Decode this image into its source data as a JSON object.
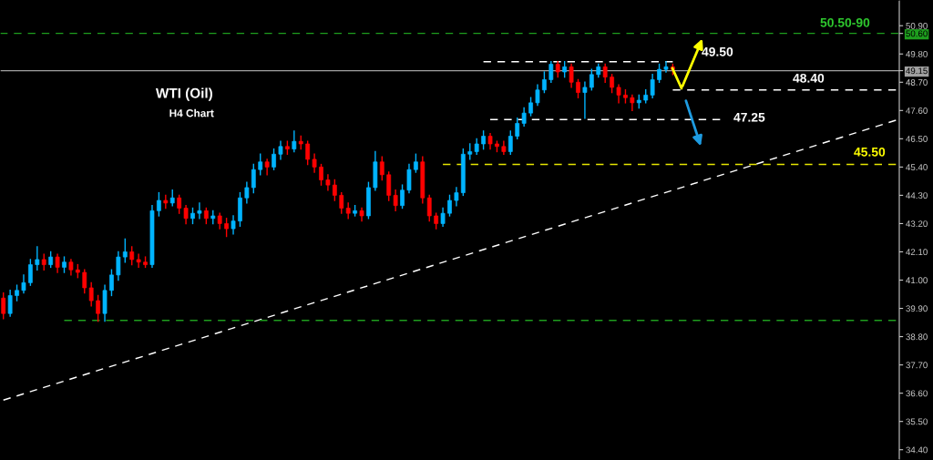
{
  "chart_data": {
    "type": "candlestick",
    "title": "WTI (Oil)",
    "subtitle": "H4 Chart",
    "categories": [
      null,
      null,
      null,
      null,
      null,
      null,
      null,
      null,
      null,
      null,
      null,
      null,
      null,
      null,
      null,
      null,
      null,
      null,
      null,
      null,
      null,
      null,
      null,
      null,
      null,
      null,
      null,
      null,
      null,
      null,
      null,
      null,
      null,
      null,
      null,
      null,
      null,
      null,
      null,
      null,
      null,
      null,
      null,
      null,
      null,
      null,
      null,
      null,
      null,
      null,
      null,
      null,
      null,
      null,
      null,
      null,
      null,
      null,
      null,
      null,
      null,
      null,
      null,
      null,
      null,
      null,
      null,
      null,
      null,
      null,
      null,
      null,
      null,
      null,
      null,
      null,
      null,
      null,
      null,
      null,
      null,
      null,
      null,
      null,
      null,
      null,
      null,
      null,
      null,
      null,
      null,
      null,
      null,
      null,
      null,
      null,
      null,
      null,
      null,
      null,
      null,
      null,
      null,
      null,
      null,
      null,
      null,
      null,
      null,
      null,
      null,
      null,
      null,
      null,
      null,
      null,
      null,
      null,
      null,
      null,
      null,
      null,
      null,
      null,
      null,
      null,
      null,
      null,
      null,
      null,
      null,
      null,
      null
    ],
    "ohlc": [
      [
        40.3,
        40.5,
        39.5,
        39.7
      ],
      [
        39.7,
        40.6,
        39.6,
        40.4
      ],
      [
        40.4,
        40.8,
        40.2,
        40.6
      ],
      [
        40.6,
        41.2,
        40.5,
        40.9
      ],
      [
        40.9,
        41.8,
        40.8,
        41.6
      ],
      [
        41.6,
        42.3,
        41.4,
        41.8
      ],
      [
        41.8,
        42.0,
        41.4,
        41.6
      ],
      [
        41.6,
        42.1,
        41.5,
        41.9
      ],
      [
        41.9,
        42.0,
        41.3,
        41.5
      ],
      [
        41.5,
        41.9,
        41.3,
        41.7
      ],
      [
        41.7,
        41.8,
        41.2,
        41.4
      ],
      [
        41.4,
        41.6,
        41.1,
        41.3
      ],
      [
        41.3,
        41.4,
        40.5,
        40.7
      ],
      [
        40.7,
        40.9,
        40.0,
        40.2
      ],
      [
        40.2,
        40.4,
        39.4,
        39.7
      ],
      [
        39.7,
        40.8,
        39.4,
        40.6
      ],
      [
        40.6,
        41.4,
        40.4,
        41.2
      ],
      [
        41.2,
        42.1,
        41.0,
        41.9
      ],
      [
        41.9,
        42.6,
        41.7,
        42.1
      ],
      [
        42.1,
        42.3,
        41.6,
        41.8
      ],
      [
        41.8,
        42.0,
        41.5,
        41.7
      ],
      [
        41.7,
        41.9,
        41.5,
        41.6
      ],
      [
        41.6,
        43.9,
        41.5,
        43.7
      ],
      [
        43.7,
        44.4,
        43.5,
        44.1
      ],
      [
        44.1,
        44.3,
        43.8,
        44.0
      ],
      [
        44.0,
        44.5,
        43.9,
        44.2
      ],
      [
        44.2,
        44.3,
        43.6,
        43.8
      ],
      [
        43.8,
        43.9,
        43.2,
        43.4
      ],
      [
        43.4,
        43.8,
        43.2,
        43.6
      ],
      [
        43.6,
        44.0,
        43.4,
        43.7
      ],
      [
        43.7,
        43.8,
        43.2,
        43.4
      ],
      [
        43.4,
        43.7,
        43.2,
        43.5
      ],
      [
        43.5,
        43.6,
        43.0,
        43.2
      ],
      [
        43.2,
        43.4,
        42.7,
        43.0
      ],
      [
        43.0,
        43.5,
        42.8,
        43.3
      ],
      [
        43.3,
        44.4,
        43.1,
        44.2
      ],
      [
        44.2,
        44.8,
        44.0,
        44.6
      ],
      [
        44.6,
        45.5,
        44.4,
        45.3
      ],
      [
        45.3,
        45.9,
        45.1,
        45.6
      ],
      [
        45.6,
        45.7,
        45.1,
        45.4
      ],
      [
        45.4,
        46.1,
        45.3,
        45.9
      ],
      [
        45.9,
        46.4,
        45.7,
        46.2
      ],
      [
        46.2,
        46.4,
        45.9,
        46.1
      ],
      [
        46.1,
        46.8,
        46.0,
        46.4
      ],
      [
        46.4,
        46.6,
        46.1,
        46.3
      ],
      [
        46.3,
        46.4,
        45.5,
        45.7
      ],
      [
        45.7,
        45.9,
        45.2,
        45.4
      ],
      [
        45.4,
        45.5,
        44.7,
        44.9
      ],
      [
        44.9,
        45.1,
        44.5,
        44.7
      ],
      [
        44.7,
        44.9,
        44.1,
        44.3
      ],
      [
        44.3,
        44.4,
        43.6,
        43.8
      ],
      [
        43.8,
        44.0,
        43.4,
        43.6
      ],
      [
        43.6,
        43.9,
        43.5,
        43.7
      ],
      [
        43.7,
        43.8,
        43.3,
        43.5
      ],
      [
        43.5,
        44.8,
        43.4,
        44.6
      ],
      [
        44.6,
        46.0,
        44.5,
        45.6
      ],
      [
        45.6,
        45.8,
        44.9,
        45.1
      ],
      [
        45.1,
        45.2,
        44.1,
        44.3
      ],
      [
        44.3,
        44.5,
        43.7,
        43.9
      ],
      [
        43.9,
        44.7,
        43.8,
        44.5
      ],
      [
        44.5,
        45.5,
        44.4,
        45.3
      ],
      [
        45.3,
        45.9,
        45.2,
        45.6
      ],
      [
        45.6,
        45.8,
        44.0,
        44.2
      ],
      [
        44.2,
        44.3,
        43.3,
        43.5
      ],
      [
        43.5,
        43.6,
        43.0,
        43.2
      ],
      [
        43.2,
        43.8,
        43.1,
        43.6
      ],
      [
        43.6,
        44.3,
        43.5,
        44.1
      ],
      [
        44.1,
        44.6,
        43.9,
        44.4
      ],
      [
        44.4,
        46.1,
        44.3,
        45.9
      ],
      [
        45.9,
        46.3,
        45.7,
        46.0
      ],
      [
        46.0,
        46.5,
        45.9,
        46.3
      ],
      [
        46.3,
        46.8,
        46.1,
        46.6
      ],
      [
        46.6,
        46.7,
        46.1,
        46.3
      ],
      [
        46.3,
        46.4,
        46.0,
        46.2
      ],
      [
        46.2,
        46.4,
        45.9,
        46.0
      ],
      [
        46.0,
        46.8,
        45.9,
        46.6
      ],
      [
        46.6,
        47.3,
        46.5,
        47.1
      ],
      [
        47.1,
        47.7,
        47.0,
        47.5
      ],
      [
        47.5,
        48.1,
        47.4,
        47.9
      ],
      [
        47.9,
        48.6,
        47.8,
        48.4
      ],
      [
        48.4,
        49.1,
        48.3,
        48.8
      ],
      [
        48.8,
        49.5,
        48.7,
        49.4
      ],
      [
        49.4,
        49.5,
        48.9,
        49.1
      ],
      [
        49.1,
        49.5,
        48.9,
        49.3
      ],
      [
        49.3,
        49.4,
        48.5,
        48.7
      ],
      [
        48.7,
        48.8,
        48.1,
        48.3
      ],
      [
        48.3,
        48.7,
        47.3,
        48.5
      ],
      [
        48.5,
        49.2,
        48.4,
        49.0
      ],
      [
        49.0,
        49.4,
        48.9,
        49.3
      ],
      [
        49.3,
        49.4,
        48.7,
        48.9
      ],
      [
        48.9,
        49.0,
        48.3,
        48.5
      ],
      [
        48.5,
        48.6,
        47.9,
        48.2
      ],
      [
        48.2,
        48.4,
        47.9,
        48.1
      ],
      [
        48.1,
        48.2,
        47.6,
        47.9
      ],
      [
        47.9,
        48.2,
        47.7,
        48.0
      ],
      [
        48.0,
        48.4,
        47.9,
        48.2
      ],
      [
        48.2,
        49.0,
        48.1,
        48.8
      ],
      [
        48.8,
        49.4,
        48.7,
        49.2
      ],
      [
        49.2,
        49.5,
        49.1,
        49.3
      ],
      [
        49.3,
        49.4,
        49.0,
        49.2
      ],
      null,
      null,
      null,
      null,
      null,
      null,
      null,
      null,
      null,
      null,
      null,
      null,
      null,
      null,
      null,
      null,
      null,
      null,
      null,
      null,
      null,
      null,
      null,
      null,
      null,
      null,
      null,
      null,
      null,
      null,
      null,
      null,
      null
    ],
    "colors": [
      "#ff0000",
      "#00b4ff",
      "#00b4ff",
      "#00b4ff",
      "#00b4ff",
      "#00b4ff",
      "#ff0000",
      "#00b4ff",
      "#ff0000",
      "#00b4ff",
      "#ff0000",
      "#ff0000",
      "#ff0000",
      "#ff0000",
      "#ff0000",
      "#00b4ff",
      "#00b4ff",
      "#00b4ff",
      "#00b4ff",
      "#ff0000",
      "#ff0000",
      "#ff0000",
      "#00b4ff",
      "#00b4ff",
      "#ff0000",
      "#00b4ff",
      "#ff0000",
      "#ff0000",
      "#00b4ff",
      "#00b4ff",
      "#ff0000",
      "#00b4ff",
      "#ff0000",
      "#ff0000",
      "#00b4ff",
      "#00b4ff",
      "#00b4ff",
      "#00b4ff",
      "#00b4ff",
      "#ff0000",
      "#00b4ff",
      "#00b4ff",
      "#ff0000",
      "#00b4ff",
      "#ff0000",
      "#ff0000",
      "#ff0000",
      "#ff0000",
      "#ff0000",
      "#ff0000",
      "#ff0000",
      "#ff0000",
      "#00b4ff",
      "#ff0000",
      "#00b4ff",
      "#00b4ff",
      "#ff0000",
      "#ff0000",
      "#ff0000",
      "#00b4ff",
      "#00b4ff",
      "#00b4ff",
      "#ff0000",
      "#ff0000",
      "#ff0000",
      "#00b4ff",
      "#00b4ff",
      "#00b4ff",
      "#00b4ff",
      "#00b4ff",
      "#00b4ff",
      "#00b4ff",
      "#ff0000",
      "#ff0000",
      "#ff0000",
      "#00b4ff",
      "#00b4ff",
      "#00b4ff",
      "#00b4ff",
      "#00b4ff",
      "#00b4ff",
      "#00b4ff",
      "#ff0000",
      "#00b4ff",
      "#ff0000",
      "#ff0000",
      "#00b4ff",
      "#00b4ff",
      "#00b4ff",
      "#ff0000",
      "#ff0000",
      "#ff0000",
      "#ff0000",
      "#ff0000",
      "#00b4ff",
      "#00b4ff",
      "#00b4ff",
      "#00b4ff",
      "#00b4ff",
      "#ff0000",
      null,
      null,
      null,
      null,
      null,
      null,
      null,
      null,
      null,
      null,
      null,
      null,
      null,
      null,
      null,
      null,
      null,
      null,
      null,
      null,
      null,
      null,
      null,
      null,
      null,
      null,
      null,
      null,
      null,
      null,
      null,
      null,
      null
    ],
    "series": [
      {
        "type": "line",
        "color": "#ffffff",
        "line_style": "dashed",
        "values": [
          36.33,
          null,
          null,
          null,
          null,
          null,
          null,
          null,
          null,
          null,
          null,
          null,
          null,
          null,
          null,
          null,
          null,
          null,
          null,
          null,
          null,
          null,
          null,
          null,
          null,
          null,
          null,
          null,
          null,
          null,
          null,
          null,
          null,
          null,
          null,
          null,
          null,
          null,
          null,
          null,
          null,
          null,
          null,
          null,
          null,
          null,
          null,
          null,
          null,
          null,
          null,
          null,
          null,
          null,
          null,
          null,
          null,
          null,
          null,
          null,
          null,
          null,
          null,
          null,
          null,
          null,
          null,
          null,
          null,
          null,
          null,
          null,
          null,
          null,
          null,
          null,
          null,
          null,
          null,
          null,
          null,
          null,
          null,
          null,
          null,
          null,
          null,
          null,
          null,
          null,
          null,
          null,
          null,
          null,
          null,
          null,
          null,
          null,
          null,
          null,
          null,
          null,
          null,
          null,
          null,
          null,
          null,
          null,
          null,
          null,
          null,
          null,
          null,
          null,
          null,
          null,
          null,
          null,
          null,
          null,
          null,
          null,
          null,
          null,
          null,
          null,
          null,
          null,
          null,
          null,
          null,
          null,
          47.22
        ]
      },
      {
        "type": "line",
        "color": "#1e9e1e",
        "line_style": "dashed",
        "values": [
          null,
          null,
          null,
          null,
          null,
          null,
          null,
          null,
          null,
          39.43,
          null,
          null,
          null,
          null,
          null,
          null,
          null,
          null,
          null,
          null,
          null,
          null,
          null,
          null,
          null,
          null,
          null,
          null,
          null,
          null,
          null,
          null,
          null,
          null,
          null,
          null,
          null,
          null,
          null,
          null,
          null,
          null,
          null,
          null,
          null,
          null,
          null,
          null,
          null,
          null,
          null,
          null,
          null,
          null,
          null,
          null,
          null,
          null,
          null,
          null,
          null,
          null,
          null,
          null,
          null,
          null,
          null,
          null,
          null,
          null,
          null,
          null,
          null,
          null,
          null,
          null,
          null,
          null,
          null,
          null,
          null,
          null,
          null,
          null,
          null,
          null,
          null,
          null,
          null,
          null,
          null,
          null,
          null,
          null,
          null,
          null,
          null,
          null,
          null,
          null,
          null,
          null,
          null,
          null,
          null,
          null,
          null,
          null,
          null,
          null,
          null,
          null,
          null,
          null,
          null,
          null,
          null,
          null,
          null,
          null,
          null,
          null,
          null,
          null,
          null,
          null,
          null,
          null,
          null,
          null,
          null,
          null,
          39.43
        ]
      },
      {
        "type": "line",
        "color": "#ffffff",
        "line_style": "dashed",
        "values": [
          null,
          null,
          null,
          null,
          null,
          null,
          null,
          null,
          null,
          null,
          null,
          null,
          null,
          null,
          null,
          null,
          null,
          null,
          null,
          null,
          null,
          null,
          null,
          null,
          null,
          null,
          null,
          null,
          null,
          null,
          null,
          null,
          null,
          null,
          null,
          null,
          null,
          null,
          null,
          null,
          null,
          null,
          null,
          null,
          null,
          null,
          null,
          null,
          null,
          null,
          null,
          null,
          null,
          null,
          null,
          null,
          null,
          null,
          null,
          null,
          null,
          null,
          null,
          null,
          null,
          null,
          null,
          null,
          null,
          null,
          null,
          49.5,
          null,
          null,
          null,
          null,
          null,
          null,
          null,
          null,
          null,
          null,
          null,
          null,
          null,
          null,
          null,
          null,
          null,
          null,
          null,
          null,
          null,
          null,
          null,
          null,
          null,
          null,
          null,
          49.5,
          null,
          null,
          null,
          null,
          null,
          null,
          null,
          null,
          null,
          null,
          null,
          null,
          null,
          null,
          null,
          null,
          null,
          null,
          null,
          null,
          null,
          null,
          null,
          null,
          null,
          null,
          null,
          null,
          null,
          null,
          null,
          null,
          null
        ]
      },
      {
        "type": "line",
        "color": "#ffffff",
        "line_style": "dashed",
        "values": [
          null,
          null,
          null,
          null,
          null,
          null,
          null,
          null,
          null,
          null,
          null,
          null,
          null,
          null,
          null,
          null,
          null,
          null,
          null,
          null,
          null,
          null,
          null,
          null,
          null,
          null,
          null,
          null,
          null,
          null,
          null,
          null,
          null,
          null,
          null,
          null,
          null,
          null,
          null,
          null,
          null,
          null,
          null,
          null,
          null,
          null,
          null,
          null,
          null,
          null,
          null,
          null,
          null,
          null,
          null,
          null,
          null,
          null,
          null,
          null,
          null,
          null,
          null,
          null,
          null,
          null,
          null,
          null,
          null,
          null,
          null,
          null,
          null,
          null,
          null,
          null,
          null,
          null,
          null,
          null,
          null,
          null,
          null,
          null,
          null,
          null,
          null,
          null,
          null,
          null,
          null,
          null,
          null,
          null,
          null,
          null,
          null,
          null,
          null,
          48.4,
          null,
          null,
          null,
          null,
          null,
          null,
          null,
          null,
          null,
          null,
          null,
          null,
          null,
          null,
          null,
          null,
          null,
          null,
          null,
          null,
          null,
          null,
          null,
          null,
          null,
          null,
          null,
          null,
          null,
          null,
          null,
          null,
          48.4
        ]
      },
      {
        "type": "line",
        "color": "#ffffff",
        "line_style": "dashed",
        "values": [
          null,
          null,
          null,
          null,
          null,
          null,
          null,
          null,
          null,
          null,
          null,
          null,
          null,
          null,
          null,
          null,
          null,
          null,
          null,
          null,
          null,
          null,
          null,
          null,
          null,
          null,
          null,
          null,
          null,
          null,
          null,
          null,
          null,
          null,
          null,
          null,
          null,
          null,
          null,
          null,
          null,
          null,
          null,
          null,
          null,
          null,
          null,
          null,
          null,
          null,
          null,
          null,
          null,
          null,
          null,
          null,
          null,
          null,
          null,
          null,
          null,
          null,
          null,
          null,
          null,
          null,
          null,
          null,
          null,
          null,
          null,
          null,
          47.25,
          null,
          null,
          null,
          null,
          null,
          null,
          null,
          null,
          null,
          null,
          null,
          null,
          null,
          null,
          null,
          null,
          null,
          null,
          null,
          null,
          null,
          null,
          null,
          null,
          null,
          null,
          null,
          null,
          null,
          null,
          null,
          null,
          null,
          47.25,
          null,
          null,
          null,
          null,
          null,
          null,
          null,
          null,
          null,
          null,
          null,
          null,
          null,
          null,
          null,
          null,
          null,
          null,
          null,
          null,
          null,
          null,
          null,
          null,
          null,
          null
        ]
      },
      {
        "type": "line",
        "color": "#e6e600",
        "line_style": "dashed",
        "values": [
          null,
          null,
          null,
          null,
          null,
          null,
          null,
          null,
          null,
          null,
          null,
          null,
          null,
          null,
          null,
          null,
          null,
          null,
          null,
          null,
          null,
          null,
          null,
          null,
          null,
          null,
          null,
          null,
          null,
          null,
          null,
          null,
          null,
          null,
          null,
          null,
          null,
          null,
          null,
          null,
          null,
          null,
          null,
          null,
          null,
          null,
          null,
          null,
          null,
          null,
          null,
          null,
          null,
          null,
          null,
          null,
          null,
          null,
          null,
          null,
          null,
          null,
          null,
          null,
          null,
          45.5,
          null,
          null,
          null,
          null,
          null,
          null,
          null,
          null,
          null,
          null,
          null,
          null,
          null,
          null,
          null,
          null,
          null,
          null,
          null,
          null,
          null,
          null,
          null,
          null,
          null,
          null,
          null,
          null,
          null,
          null,
          null,
          null,
          null,
          null,
          null,
          null,
          null,
          null,
          null,
          null,
          null,
          null,
          null,
          null,
          null,
          null,
          null,
          null,
          null,
          null,
          null,
          null,
          null,
          null,
          null,
          null,
          null,
          null,
          null,
          null,
          null,
          null,
          null,
          null,
          null,
          null,
          45.5
        ]
      }
    ],
    "ref_lines": [
      {
        "axis": "y",
        "value": 50.6,
        "label": null,
        "color": "#1e9e1e",
        "line_style": "dashed"
      },
      {
        "axis": "y",
        "value": 49.15,
        "label": null,
        "color": "#a0a0a0",
        "line_style": "solid"
      }
    ],
    "annotations": [
      "50.50-90",
      "49.50",
      "48.40",
      "47.25",
      "45.50"
    ],
    "ylim": [
      34.0,
      51.9
    ],
    "yticks": [
      {
        "value": 50.9,
        "label": "50.90"
      },
      {
        "value": 50.6,
        "label": "50.60"
      },
      {
        "value": 49.8,
        "label": "49.80"
      },
      {
        "value": 49.15,
        "label": "49.15"
      },
      {
        "value": 48.7,
        "label": "48.70"
      },
      {
        "value": 47.6,
        "label": "47.60"
      },
      {
        "value": 46.5,
        "label": "46.50"
      },
      {
        "value": 45.4,
        "label": "45.40"
      },
      {
        "value": 44.3,
        "label": "44.30"
      },
      {
        "value": 43.2,
        "label": "43.20"
      },
      {
        "value": 42.1,
        "label": "42.10"
      },
      {
        "value": 41.0,
        "label": "41.00"
      },
      {
        "value": 39.9,
        "label": "39.90"
      },
      {
        "value": 38.8,
        "label": "38.80"
      },
      {
        "value": 37.7,
        "label": "37.70"
      },
      {
        "value": 36.6,
        "label": "36.60"
      },
      {
        "value": 35.5,
        "label": "35.50"
      },
      {
        "value": 34.4,
        "label": "34.40"
      }
    ],
    "tick_labels": "y",
    "grid": false,
    "legend": false
  }
}
